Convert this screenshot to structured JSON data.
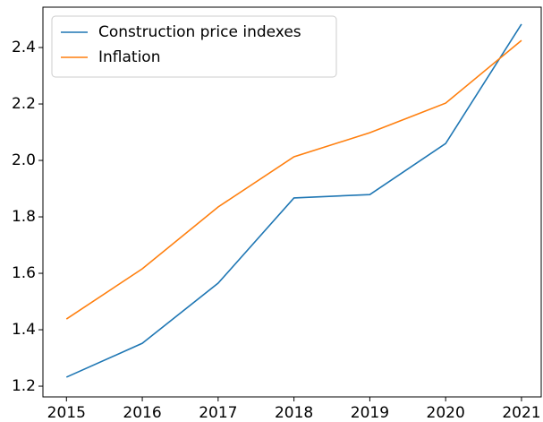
{
  "chart_data": {
    "type": "line",
    "x": [
      2015,
      2016,
      2017,
      2018,
      2019,
      2020,
      2021
    ],
    "series": [
      {
        "name": "Construction price indexes",
        "color": "#1f77b4",
        "values": [
          1.232,
          1.352,
          1.565,
          1.867,
          1.879,
          2.06,
          2.483
        ]
      },
      {
        "name": "Inflation",
        "color": "#ff7f0e",
        "values": [
          1.438,
          1.616,
          1.835,
          2.013,
          2.098,
          2.203,
          2.425
        ]
      }
    ],
    "xlim": [
      2014.69,
      2021.26
    ],
    "xticks": [
      2015,
      2016,
      2017,
      2018,
      2019,
      2020,
      2021
    ],
    "ylim": [
      1.162,
      2.543
    ],
    "yticks": [
      {
        "value": 1.2,
        "label": "1.2"
      },
      {
        "value": 1.4,
        "label": "1.4"
      },
      {
        "value": 1.6,
        "label": "1.6"
      },
      {
        "value": 1.8,
        "label": "1.8"
      },
      {
        "value": 2.0,
        "label": "2.0"
      },
      {
        "value": 2.2,
        "label": "2.2"
      },
      {
        "value": 2.4,
        "label": "2.4"
      }
    ],
    "grid": false,
    "legend": "upper left"
  }
}
